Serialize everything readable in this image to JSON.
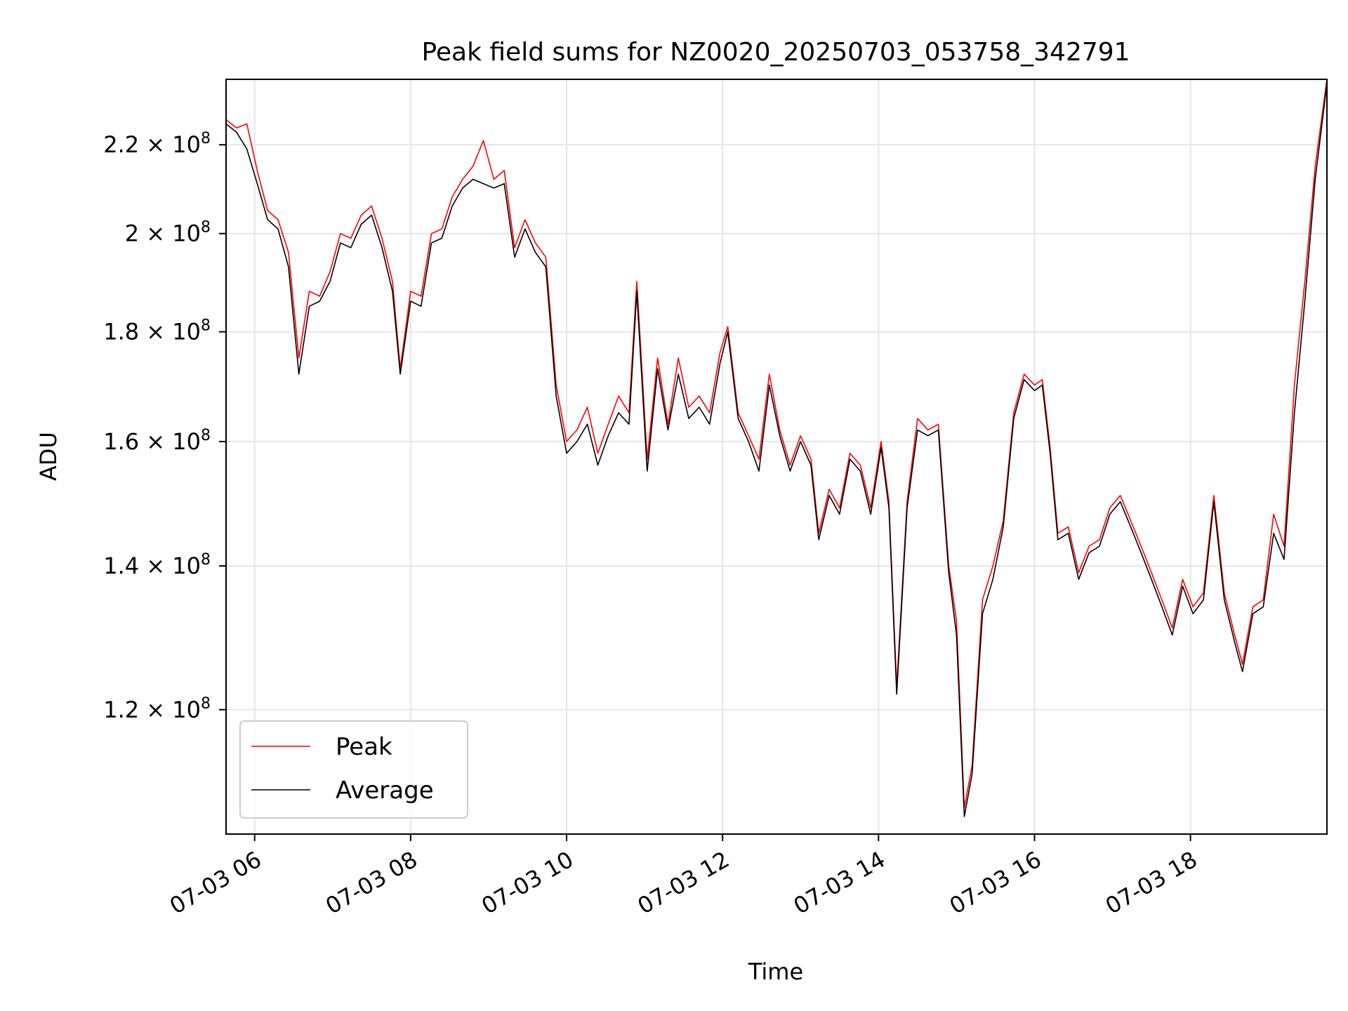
{
  "chart_data": {
    "type": "line",
    "title": "Peak field sums for NZ0020_20250703_053758_342791",
    "xlabel": "Time",
    "ylabel": "ADU",
    "x_axis_type": "datetime",
    "y_scale": "log",
    "xlim": [
      "2025-07-03 05:38",
      "2025-07-03 19:45"
    ],
    "ylim": [
      105000000,
      236000000
    ],
    "x_ticks": [
      {
        "value": "2025-07-03 06:00",
        "label": "07-03 06"
      },
      {
        "value": "2025-07-03 08:00",
        "label": "07-03 08"
      },
      {
        "value": "2025-07-03 10:00",
        "label": "07-03 10"
      },
      {
        "value": "2025-07-03 12:00",
        "label": "07-03 12"
      },
      {
        "value": "2025-07-03 14:00",
        "label": "07-03 14"
      },
      {
        "value": "2025-07-03 16:00",
        "label": "07-03 16"
      },
      {
        "value": "2025-07-03 18:00",
        "label": "07-03 18"
      }
    ],
    "y_ticks": [
      {
        "value": 120000000,
        "mantissa": "1.2",
        "exponent": "8"
      },
      {
        "value": 140000000,
        "mantissa": "1.4",
        "exponent": "8"
      },
      {
        "value": 160000000,
        "mantissa": "1.6",
        "exponent": "8"
      },
      {
        "value": 180000000,
        "mantissa": "1.8",
        "exponent": "8"
      },
      {
        "value": 200000000,
        "mantissa": "2",
        "exponent": "8"
      },
      {
        "value": 220000000,
        "mantissa": "2.2",
        "exponent": "8"
      }
    ],
    "grid": true,
    "legend_position": "lower-left",
    "series": [
      {
        "name": "Peak",
        "color": "#ff0000",
        "points": [
          [
            "2025-07-03 05:38",
            226000000
          ],
          [
            "2025-07-03 05:46",
            224000000
          ],
          [
            "2025-07-03 05:54",
            225000000
          ],
          [
            "2025-07-03 06:02",
            214000000
          ],
          [
            "2025-07-03 06:10",
            205000000
          ],
          [
            "2025-07-03 06:18",
            203000000
          ],
          [
            "2025-07-03 06:26",
            196000000
          ],
          [
            "2025-07-03 06:34",
            175000000
          ],
          [
            "2025-07-03 06:42",
            188000000
          ],
          [
            "2025-07-03 06:50",
            187000000
          ],
          [
            "2025-07-03 06:58",
            192000000
          ],
          [
            "2025-07-03 07:06",
            200000000
          ],
          [
            "2025-07-03 07:14",
            199000000
          ],
          [
            "2025-07-03 07:22",
            204000000
          ],
          [
            "2025-07-03 07:30",
            206000000
          ],
          [
            "2025-07-03 07:38",
            199000000
          ],
          [
            "2025-07-03 07:46",
            190000000
          ],
          [
            "2025-07-03 07:52",
            173000000
          ],
          [
            "2025-07-03 08:00",
            188000000
          ],
          [
            "2025-07-03 08:08",
            187000000
          ],
          [
            "2025-07-03 08:16",
            200000000
          ],
          [
            "2025-07-03 08:24",
            201000000
          ],
          [
            "2025-07-03 08:32",
            208000000
          ],
          [
            "2025-07-03 08:40",
            212000000
          ],
          [
            "2025-07-03 08:48",
            215000000
          ],
          [
            "2025-07-03 08:56",
            221000000
          ],
          [
            "2025-07-03 09:04",
            212000000
          ],
          [
            "2025-07-03 09:12",
            214000000
          ],
          [
            "2025-07-03 09:20",
            197000000
          ],
          [
            "2025-07-03 09:28",
            203000000
          ],
          [
            "2025-07-03 09:36",
            198000000
          ],
          [
            "2025-07-03 09:44",
            195000000
          ],
          [
            "2025-07-03 09:52",
            170000000
          ],
          [
            "2025-07-03 10:00",
            160000000
          ],
          [
            "2025-07-03 10:08",
            162000000
          ],
          [
            "2025-07-03 10:16",
            166000000
          ],
          [
            "2025-07-03 10:24",
            158000000
          ],
          [
            "2025-07-03 10:32",
            163000000
          ],
          [
            "2025-07-03 10:40",
            168000000
          ],
          [
            "2025-07-03 10:48",
            165000000
          ],
          [
            "2025-07-03 10:54",
            190000000
          ],
          [
            "2025-07-03 11:02",
            157000000
          ],
          [
            "2025-07-03 11:10",
            175000000
          ],
          [
            "2025-07-03 11:18",
            163000000
          ],
          [
            "2025-07-03 11:26",
            175000000
          ],
          [
            "2025-07-03 11:34",
            166000000
          ],
          [
            "2025-07-03 11:42",
            168000000
          ],
          [
            "2025-07-03 11:50",
            165000000
          ],
          [
            "2025-07-03 11:58",
            176000000
          ],
          [
            "2025-07-03 12:04",
            181000000
          ],
          [
            "2025-07-03 12:12",
            165000000
          ],
          [
            "2025-07-03 12:20",
            161000000
          ],
          [
            "2025-07-03 12:28",
            157000000
          ],
          [
            "2025-07-03 12:36",
            172000000
          ],
          [
            "2025-07-03 12:44",
            162000000
          ],
          [
            "2025-07-03 12:52",
            156000000
          ],
          [
            "2025-07-03 13:00",
            161000000
          ],
          [
            "2025-07-03 13:08",
            157000000
          ],
          [
            "2025-07-03 13:14",
            145000000
          ],
          [
            "2025-07-03 13:22",
            152000000
          ],
          [
            "2025-07-03 13:30",
            149000000
          ],
          [
            "2025-07-03 13:38",
            158000000
          ],
          [
            "2025-07-03 13:46",
            156000000
          ],
          [
            "2025-07-03 13:54",
            149000000
          ],
          [
            "2025-07-03 14:02",
            160000000
          ],
          [
            "2025-07-03 14:08",
            150000000
          ],
          [
            "2025-07-03 14:14",
            123000000
          ],
          [
            "2025-07-03 14:22",
            150000000
          ],
          [
            "2025-07-03 14:30",
            164000000
          ],
          [
            "2025-07-03 14:38",
            162000000
          ],
          [
            "2025-07-03 14:46",
            163000000
          ],
          [
            "2025-07-03 14:54",
            140000000
          ],
          [
            "2025-07-03 15:00",
            132000000
          ],
          [
            "2025-07-03 15:06",
            108000000
          ],
          [
            "2025-07-03 15:12",
            113000000
          ],
          [
            "2025-07-03 15:20",
            135000000
          ],
          [
            "2025-07-03 15:28",
            140000000
          ],
          [
            "2025-07-03 15:36",
            147000000
          ],
          [
            "2025-07-03 15:44",
            165000000
          ],
          [
            "2025-07-03 15:52",
            172000000
          ],
          [
            "2025-07-03 16:00",
            170000000
          ],
          [
            "2025-07-03 16:06",
            171000000
          ],
          [
            "2025-07-03 16:12",
            159000000
          ],
          [
            "2025-07-03 16:18",
            145000000
          ],
          [
            "2025-07-03 16:26",
            146000000
          ],
          [
            "2025-07-03 16:34",
            139000000
          ],
          [
            "2025-07-03 16:42",
            143000000
          ],
          [
            "2025-07-03 16:50",
            144000000
          ],
          [
            "2025-07-03 16:58",
            149000000
          ],
          [
            "2025-07-03 17:06",
            151000000
          ],
          [
            "2025-07-03 17:14",
            147000000
          ],
          [
            "2025-07-03 17:22",
            143000000
          ],
          [
            "2025-07-03 17:30",
            139000000
          ],
          [
            "2025-07-03 17:38",
            135000000
          ],
          [
            "2025-07-03 17:46",
            131000000
          ],
          [
            "2025-07-03 17:54",
            138000000
          ],
          [
            "2025-07-03 18:02",
            134000000
          ],
          [
            "2025-07-03 18:10",
            136000000
          ],
          [
            "2025-07-03 18:18",
            151000000
          ],
          [
            "2025-07-03 18:26",
            136000000
          ],
          [
            "2025-07-03 18:34",
            130000000
          ],
          [
            "2025-07-03 18:40",
            126000000
          ],
          [
            "2025-07-03 18:48",
            134000000
          ],
          [
            "2025-07-03 18:56",
            135000000
          ],
          [
            "2025-07-03 19:04",
            148000000
          ],
          [
            "2025-07-03 19:12",
            143000000
          ],
          [
            "2025-07-03 19:20",
            170000000
          ],
          [
            "2025-07-03 19:28",
            190000000
          ],
          [
            "2025-07-03 19:36",
            215000000
          ],
          [
            "2025-07-03 19:45",
            236000000
          ]
        ]
      },
      {
        "name": "Average",
        "color": "#000000",
        "points": [
          [
            "2025-07-03 05:38",
            225000000
          ],
          [
            "2025-07-03 05:46",
            223000000
          ],
          [
            "2025-07-03 05:54",
            219000000
          ],
          [
            "2025-07-03 06:02",
            211000000
          ],
          [
            "2025-07-03 06:10",
            203000000
          ],
          [
            "2025-07-03 06:18",
            201000000
          ],
          [
            "2025-07-03 06:26",
            193000000
          ],
          [
            "2025-07-03 06:34",
            172000000
          ],
          [
            "2025-07-03 06:42",
            185000000
          ],
          [
            "2025-07-03 06:50",
            186000000
          ],
          [
            "2025-07-03 06:58",
            190000000
          ],
          [
            "2025-07-03 07:06",
            198000000
          ],
          [
            "2025-07-03 07:14",
            197000000
          ],
          [
            "2025-07-03 07:22",
            202000000
          ],
          [
            "2025-07-03 07:30",
            204000000
          ],
          [
            "2025-07-03 07:38",
            197000000
          ],
          [
            "2025-07-03 07:46",
            188000000
          ],
          [
            "2025-07-03 07:52",
            172000000
          ],
          [
            "2025-07-03 08:00",
            186000000
          ],
          [
            "2025-07-03 08:08",
            185000000
          ],
          [
            "2025-07-03 08:16",
            198000000
          ],
          [
            "2025-07-03 08:24",
            199000000
          ],
          [
            "2025-07-03 08:32",
            206000000
          ],
          [
            "2025-07-03 08:40",
            210000000
          ],
          [
            "2025-07-03 08:48",
            212000000
          ],
          [
            "2025-07-03 08:56",
            211000000
          ],
          [
            "2025-07-03 09:04",
            210000000
          ],
          [
            "2025-07-03 09:12",
            211000000
          ],
          [
            "2025-07-03 09:20",
            195000000
          ],
          [
            "2025-07-03 09:28",
            201000000
          ],
          [
            "2025-07-03 09:36",
            196000000
          ],
          [
            "2025-07-03 09:44",
            193000000
          ],
          [
            "2025-07-03 09:52",
            168000000
          ],
          [
            "2025-07-03 10:00",
            158000000
          ],
          [
            "2025-07-03 10:08",
            160000000
          ],
          [
            "2025-07-03 10:16",
            163000000
          ],
          [
            "2025-07-03 10:24",
            156000000
          ],
          [
            "2025-07-03 10:32",
            161000000
          ],
          [
            "2025-07-03 10:40",
            165000000
          ],
          [
            "2025-07-03 10:48",
            163000000
          ],
          [
            "2025-07-03 10:54",
            188000000
          ],
          [
            "2025-07-03 11:02",
            155000000
          ],
          [
            "2025-07-03 11:10",
            173000000
          ],
          [
            "2025-07-03 11:18",
            162000000
          ],
          [
            "2025-07-03 11:26",
            172000000
          ],
          [
            "2025-07-03 11:34",
            164000000
          ],
          [
            "2025-07-03 11:42",
            166000000
          ],
          [
            "2025-07-03 11:50",
            163000000
          ],
          [
            "2025-07-03 11:58",
            174000000
          ],
          [
            "2025-07-03 12:04",
            180000000
          ],
          [
            "2025-07-03 12:12",
            164000000
          ],
          [
            "2025-07-03 12:20",
            160000000
          ],
          [
            "2025-07-03 12:28",
            155000000
          ],
          [
            "2025-07-03 12:36",
            170000000
          ],
          [
            "2025-07-03 12:44",
            161000000
          ],
          [
            "2025-07-03 12:52",
            155000000
          ],
          [
            "2025-07-03 13:00",
            160000000
          ],
          [
            "2025-07-03 13:08",
            156000000
          ],
          [
            "2025-07-03 13:14",
            144000000
          ],
          [
            "2025-07-03 13:22",
            151000000
          ],
          [
            "2025-07-03 13:30",
            148000000
          ],
          [
            "2025-07-03 13:38",
            157000000
          ],
          [
            "2025-07-03 13:46",
            155000000
          ],
          [
            "2025-07-03 13:54",
            148000000
          ],
          [
            "2025-07-03 14:02",
            159000000
          ],
          [
            "2025-07-03 14:08",
            149000000
          ],
          [
            "2025-07-03 14:14",
            122000000
          ],
          [
            "2025-07-03 14:22",
            149000000
          ],
          [
            "2025-07-03 14:30",
            162000000
          ],
          [
            "2025-07-03 14:38",
            161000000
          ],
          [
            "2025-07-03 14:46",
            162000000
          ],
          [
            "2025-07-03 14:54",
            139000000
          ],
          [
            "2025-07-03 15:00",
            130000000
          ],
          [
            "2025-07-03 15:06",
            107000000
          ],
          [
            "2025-07-03 15:12",
            112000000
          ],
          [
            "2025-07-03 15:20",
            133000000
          ],
          [
            "2025-07-03 15:28",
            138000000
          ],
          [
            "2025-07-03 15:36",
            146000000
          ],
          [
            "2025-07-03 15:44",
            164000000
          ],
          [
            "2025-07-03 15:52",
            171000000
          ],
          [
            "2025-07-03 16:00",
            169000000
          ],
          [
            "2025-07-03 16:06",
            170000000
          ],
          [
            "2025-07-03 16:12",
            158000000
          ],
          [
            "2025-07-03 16:18",
            144000000
          ],
          [
            "2025-07-03 16:26",
            145000000
          ],
          [
            "2025-07-03 16:34",
            138000000
          ],
          [
            "2025-07-03 16:42",
            142000000
          ],
          [
            "2025-07-03 16:50",
            143000000
          ],
          [
            "2025-07-03 16:58",
            148000000
          ],
          [
            "2025-07-03 17:06",
            150000000
          ],
          [
            "2025-07-03 17:14",
            146000000
          ],
          [
            "2025-07-03 17:22",
            142000000
          ],
          [
            "2025-07-03 17:30",
            138000000
          ],
          [
            "2025-07-03 17:38",
            134000000
          ],
          [
            "2025-07-03 17:46",
            130000000
          ],
          [
            "2025-07-03 17:54",
            137000000
          ],
          [
            "2025-07-03 18:02",
            133000000
          ],
          [
            "2025-07-03 18:10",
            135000000
          ],
          [
            "2025-07-03 18:18",
            150000000
          ],
          [
            "2025-07-03 18:26",
            135000000
          ],
          [
            "2025-07-03 18:34",
            129000000
          ],
          [
            "2025-07-03 18:40",
            125000000
          ],
          [
            "2025-07-03 18:48",
            133000000
          ],
          [
            "2025-07-03 18:56",
            134000000
          ],
          [
            "2025-07-03 19:04",
            145000000
          ],
          [
            "2025-07-03 19:12",
            141000000
          ],
          [
            "2025-07-03 19:20",
            165000000
          ],
          [
            "2025-07-03 19:28",
            186000000
          ],
          [
            "2025-07-03 19:36",
            212000000
          ],
          [
            "2025-07-03 19:45",
            235000000
          ]
        ]
      }
    ]
  }
}
